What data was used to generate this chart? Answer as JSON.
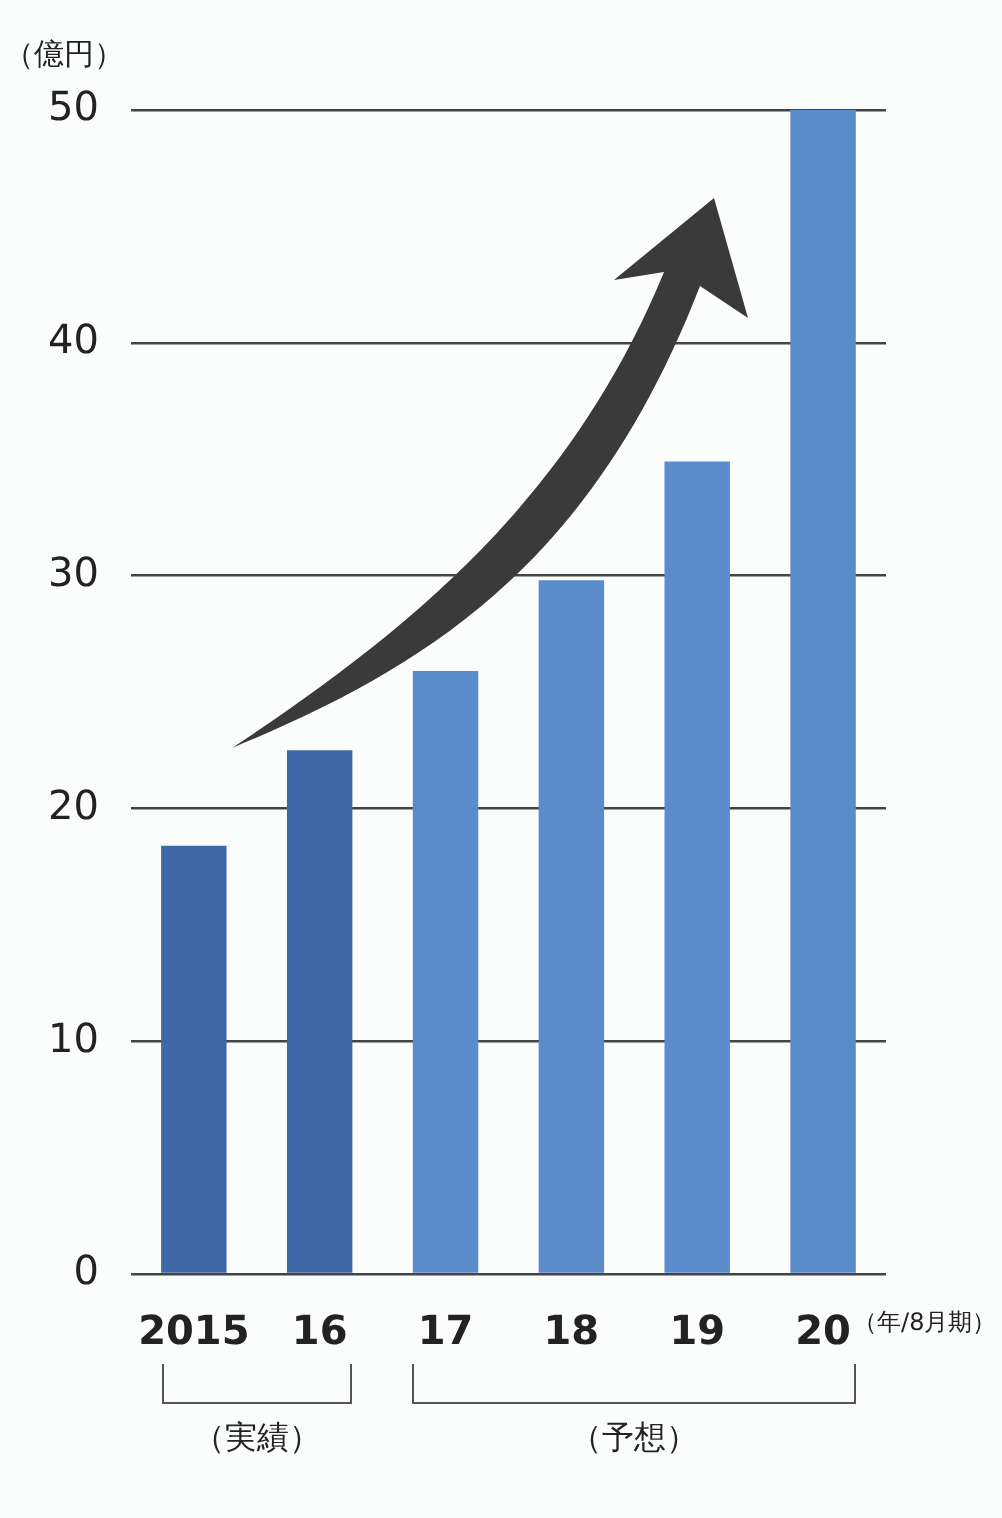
{
  "chart_data": {
    "type": "bar",
    "ylabel": "（億円）",
    "xlabel": "（年/8月期）",
    "categories": [
      "2015",
      "16",
      "17",
      "18",
      "19",
      "20"
    ],
    "values": [
      18.4,
      22.5,
      25.9,
      29.8,
      34.9,
      50
    ],
    "colors": [
      "#3f69a6",
      "#3f69a6",
      "#5a8ccb",
      "#5a8ccb",
      "#5a8ccb",
      "#5a8ccb"
    ],
    "ylim": [
      0,
      50
    ],
    "yticks": [
      0,
      10,
      20,
      30,
      40,
      50
    ],
    "grid": "y",
    "annotations": [
      "（実績）",
      "（予想）"
    ]
  }
}
